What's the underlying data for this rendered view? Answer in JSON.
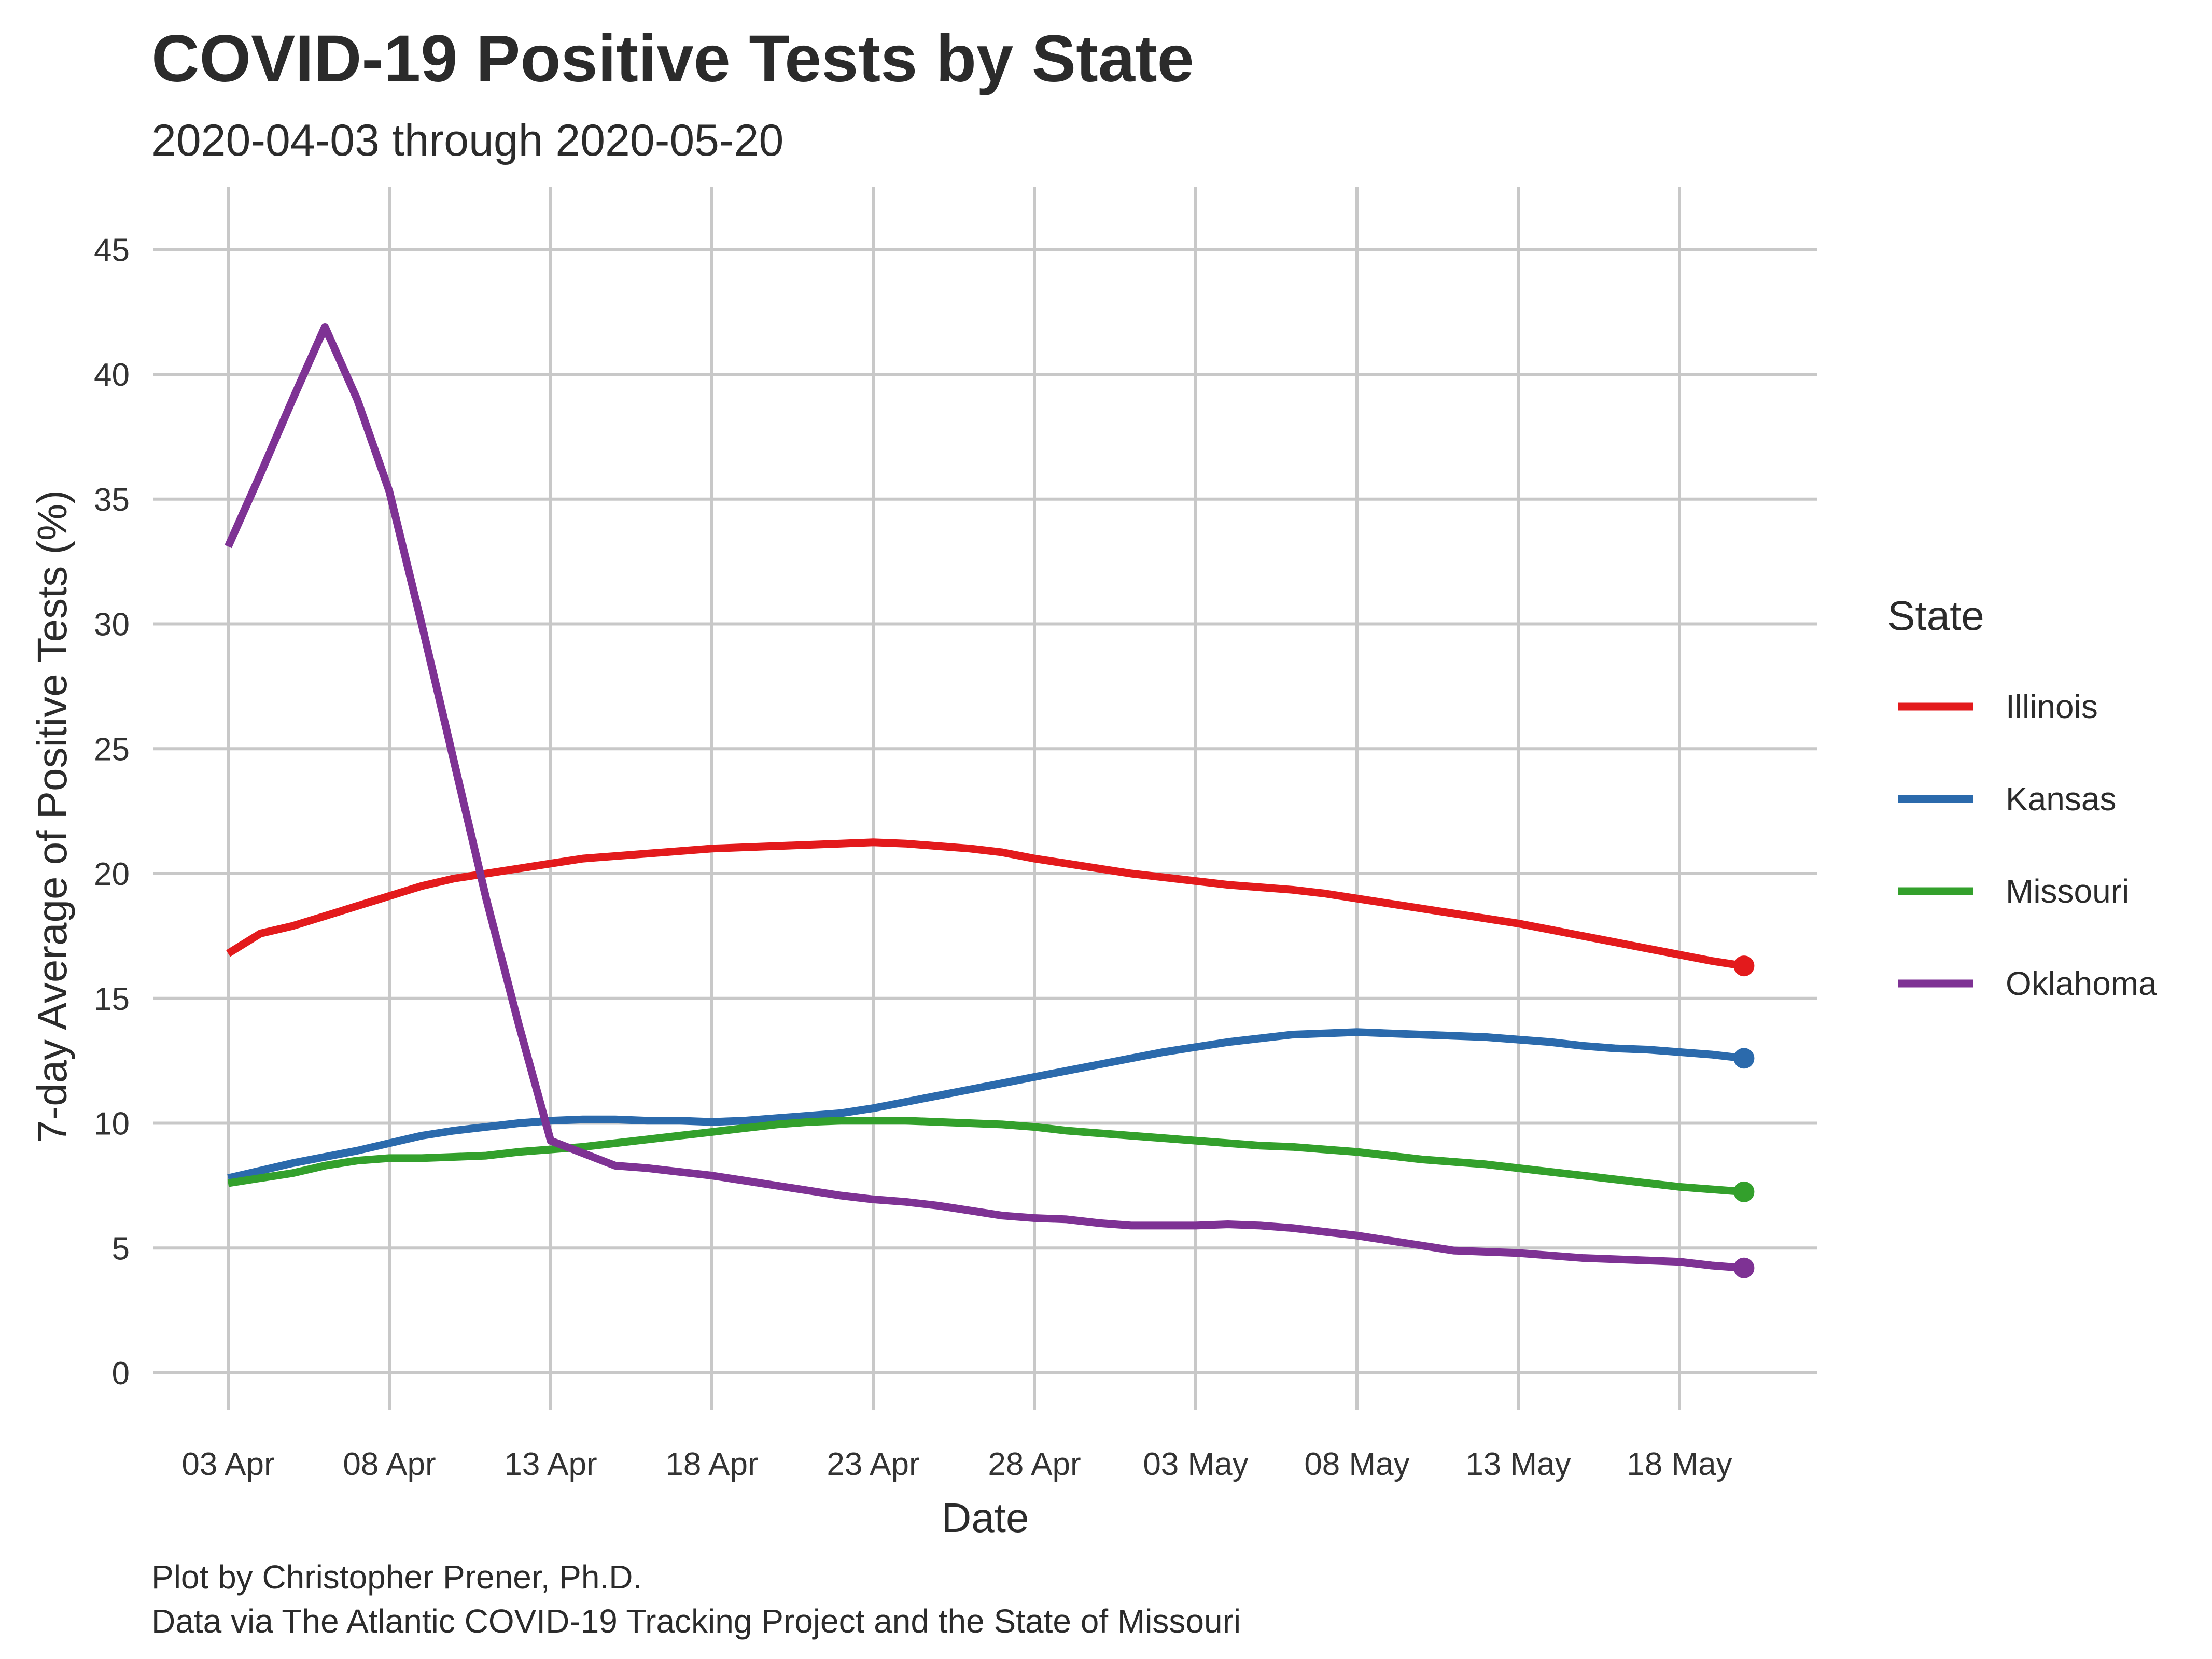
{
  "chart_data": {
    "type": "line",
    "title": "COVID-19 Positive Tests by State",
    "subtitle": "2020-04-03 through 2020-05-20",
    "xlabel": "Date",
    "ylabel": "7-day Average of Positive Tests (%)",
    "caption_lines": [
      "Plot by Christopher Prener, Ph.D.",
      "Data via The Atlantic COVID-19 Tracking Project and the State of Missouri"
    ],
    "xlim": [
      "2020-04-03",
      "2020-05-20"
    ],
    "ylim": [
      0,
      45
    ],
    "y_ticks": [
      0,
      5,
      10,
      15,
      20,
      25,
      30,
      35,
      40,
      45
    ],
    "x_ticks": [
      {
        "date": "2020-04-03",
        "label": "03 Apr"
      },
      {
        "date": "2020-04-08",
        "label": "08 Apr"
      },
      {
        "date": "2020-04-13",
        "label": "13 Apr"
      },
      {
        "date": "2020-04-18",
        "label": "18 Apr"
      },
      {
        "date": "2020-04-23",
        "label": "23 Apr"
      },
      {
        "date": "2020-04-28",
        "label": "28 Apr"
      },
      {
        "date": "2020-05-03",
        "label": "03 May"
      },
      {
        "date": "2020-05-08",
        "label": "08 May"
      },
      {
        "date": "2020-05-13",
        "label": "13 May"
      },
      {
        "date": "2020-05-18",
        "label": "18 May"
      }
    ],
    "grid": true,
    "legend": {
      "title": "State",
      "position": "right"
    },
    "series": [
      {
        "name": "Illinois",
        "color": "#e31a1c",
        "points": [
          [
            "2020-04-03",
            16.8
          ],
          [
            "2020-04-04",
            17.6
          ],
          [
            "2020-04-05",
            17.9
          ],
          [
            "2020-04-06",
            18.3
          ],
          [
            "2020-04-07",
            18.7
          ],
          [
            "2020-04-08",
            19.1
          ],
          [
            "2020-04-09",
            19.5
          ],
          [
            "2020-04-10",
            19.8
          ],
          [
            "2020-04-11",
            20.0
          ],
          [
            "2020-04-12",
            20.2
          ],
          [
            "2020-04-13",
            20.4
          ],
          [
            "2020-04-14",
            20.6
          ],
          [
            "2020-04-15",
            20.7
          ],
          [
            "2020-04-16",
            20.8
          ],
          [
            "2020-04-17",
            20.9
          ],
          [
            "2020-04-18",
            21.0
          ],
          [
            "2020-04-19",
            21.05
          ],
          [
            "2020-04-20",
            21.1
          ],
          [
            "2020-04-21",
            21.15
          ],
          [
            "2020-04-22",
            21.2
          ],
          [
            "2020-04-23",
            21.25
          ],
          [
            "2020-04-24",
            21.2
          ],
          [
            "2020-04-25",
            21.1
          ],
          [
            "2020-04-26",
            21.0
          ],
          [
            "2020-04-27",
            20.85
          ],
          [
            "2020-04-28",
            20.6
          ],
          [
            "2020-04-29",
            20.4
          ],
          [
            "2020-04-30",
            20.2
          ],
          [
            "2020-05-01",
            20.0
          ],
          [
            "2020-05-02",
            19.85
          ],
          [
            "2020-05-03",
            19.7
          ],
          [
            "2020-05-04",
            19.55
          ],
          [
            "2020-05-05",
            19.45
          ],
          [
            "2020-05-06",
            19.35
          ],
          [
            "2020-05-07",
            19.2
          ],
          [
            "2020-05-08",
            19.0
          ],
          [
            "2020-05-09",
            18.8
          ],
          [
            "2020-05-10",
            18.6
          ],
          [
            "2020-05-11",
            18.4
          ],
          [
            "2020-05-12",
            18.2
          ],
          [
            "2020-05-13",
            18.0
          ],
          [
            "2020-05-14",
            17.75
          ],
          [
            "2020-05-15",
            17.5
          ],
          [
            "2020-05-16",
            17.25
          ],
          [
            "2020-05-17",
            17.0
          ],
          [
            "2020-05-18",
            16.75
          ],
          [
            "2020-05-19",
            16.5
          ],
          [
            "2020-05-20",
            16.3
          ]
        ]
      },
      {
        "name": "Kansas",
        "color": "#2b6aac",
        "points": [
          [
            "2020-04-03",
            7.8
          ],
          [
            "2020-04-04",
            8.1
          ],
          [
            "2020-04-05",
            8.4
          ],
          [
            "2020-04-06",
            8.65
          ],
          [
            "2020-04-07",
            8.9
          ],
          [
            "2020-04-08",
            9.2
          ],
          [
            "2020-04-09",
            9.5
          ],
          [
            "2020-04-10",
            9.7
          ],
          [
            "2020-04-11",
            9.85
          ],
          [
            "2020-04-12",
            10.0
          ],
          [
            "2020-04-13",
            10.1
          ],
          [
            "2020-04-14",
            10.15
          ],
          [
            "2020-04-15",
            10.15
          ],
          [
            "2020-04-16",
            10.1
          ],
          [
            "2020-04-17",
            10.1
          ],
          [
            "2020-04-18",
            10.05
          ],
          [
            "2020-04-19",
            10.1
          ],
          [
            "2020-04-20",
            10.2
          ],
          [
            "2020-04-21",
            10.3
          ],
          [
            "2020-04-22",
            10.4
          ],
          [
            "2020-04-23",
            10.6
          ],
          [
            "2020-04-24",
            10.85
          ],
          [
            "2020-04-25",
            11.1
          ],
          [
            "2020-04-26",
            11.35
          ],
          [
            "2020-04-27",
            11.6
          ],
          [
            "2020-04-28",
            11.85
          ],
          [
            "2020-04-29",
            12.1
          ],
          [
            "2020-04-30",
            12.35
          ],
          [
            "2020-05-01",
            12.6
          ],
          [
            "2020-05-02",
            12.85
          ],
          [
            "2020-05-03",
            13.05
          ],
          [
            "2020-05-04",
            13.25
          ],
          [
            "2020-05-05",
            13.4
          ],
          [
            "2020-05-06",
            13.55
          ],
          [
            "2020-05-07",
            13.6
          ],
          [
            "2020-05-08",
            13.65
          ],
          [
            "2020-05-09",
            13.6
          ],
          [
            "2020-05-10",
            13.55
          ],
          [
            "2020-05-11",
            13.5
          ],
          [
            "2020-05-12",
            13.45
          ],
          [
            "2020-05-13",
            13.35
          ],
          [
            "2020-05-14",
            13.25
          ],
          [
            "2020-05-15",
            13.1
          ],
          [
            "2020-05-16",
            13.0
          ],
          [
            "2020-05-17",
            12.95
          ],
          [
            "2020-05-18",
            12.85
          ],
          [
            "2020-05-19",
            12.75
          ],
          [
            "2020-05-20",
            12.6
          ]
        ]
      },
      {
        "name": "Missouri",
        "color": "#33a02c",
        "points": [
          [
            "2020-04-03",
            7.6
          ],
          [
            "2020-04-04",
            7.8
          ],
          [
            "2020-04-05",
            8.0
          ],
          [
            "2020-04-06",
            8.3
          ],
          [
            "2020-04-07",
            8.5
          ],
          [
            "2020-04-08",
            8.6
          ],
          [
            "2020-04-09",
            8.6
          ],
          [
            "2020-04-10",
            8.65
          ],
          [
            "2020-04-11",
            8.7
          ],
          [
            "2020-04-12",
            8.85
          ],
          [
            "2020-04-13",
            8.95
          ],
          [
            "2020-04-14",
            9.05
          ],
          [
            "2020-04-15",
            9.2
          ],
          [
            "2020-04-16",
            9.35
          ],
          [
            "2020-04-17",
            9.5
          ],
          [
            "2020-04-18",
            9.65
          ],
          [
            "2020-04-19",
            9.8
          ],
          [
            "2020-04-20",
            9.95
          ],
          [
            "2020-04-21",
            10.05
          ],
          [
            "2020-04-22",
            10.1
          ],
          [
            "2020-04-23",
            10.1
          ],
          [
            "2020-04-24",
            10.1
          ],
          [
            "2020-04-25",
            10.05
          ],
          [
            "2020-04-26",
            10.0
          ],
          [
            "2020-04-27",
            9.95
          ],
          [
            "2020-04-28",
            9.85
          ],
          [
            "2020-04-29",
            9.7
          ],
          [
            "2020-04-30",
            9.6
          ],
          [
            "2020-05-01",
            9.5
          ],
          [
            "2020-05-02",
            9.4
          ],
          [
            "2020-05-03",
            9.3
          ],
          [
            "2020-05-04",
            9.2
          ],
          [
            "2020-05-05",
            9.1
          ],
          [
            "2020-05-06",
            9.05
          ],
          [
            "2020-05-07",
            8.95
          ],
          [
            "2020-05-08",
            8.85
          ],
          [
            "2020-05-09",
            8.7
          ],
          [
            "2020-05-10",
            8.55
          ],
          [
            "2020-05-11",
            8.45
          ],
          [
            "2020-05-12",
            8.35
          ],
          [
            "2020-05-13",
            8.2
          ],
          [
            "2020-05-14",
            8.05
          ],
          [
            "2020-05-15",
            7.9
          ],
          [
            "2020-05-16",
            7.75
          ],
          [
            "2020-05-17",
            7.6
          ],
          [
            "2020-05-18",
            7.45
          ],
          [
            "2020-05-19",
            7.35
          ],
          [
            "2020-05-20",
            7.25
          ]
        ]
      },
      {
        "name": "Oklahoma",
        "color": "#7e3294",
        "points": [
          [
            "2020-04-03",
            33.1
          ],
          [
            "2020-04-04",
            36.0
          ],
          [
            "2020-04-05",
            39.0
          ],
          [
            "2020-04-06",
            41.9
          ],
          [
            "2020-04-07",
            39.0
          ],
          [
            "2020-04-08",
            35.3
          ],
          [
            "2020-04-09",
            30.0
          ],
          [
            "2020-04-10",
            24.5
          ],
          [
            "2020-04-11",
            19.0
          ],
          [
            "2020-04-12",
            14.0
          ],
          [
            "2020-04-13",
            9.3
          ],
          [
            "2020-04-14",
            8.8
          ],
          [
            "2020-04-15",
            8.3
          ],
          [
            "2020-04-16",
            8.2
          ],
          [
            "2020-04-17",
            8.05
          ],
          [
            "2020-04-18",
            7.9
          ],
          [
            "2020-04-19",
            7.7
          ],
          [
            "2020-04-20",
            7.5
          ],
          [
            "2020-04-21",
            7.3
          ],
          [
            "2020-04-22",
            7.1
          ],
          [
            "2020-04-23",
            6.95
          ],
          [
            "2020-04-24",
            6.85
          ],
          [
            "2020-04-25",
            6.7
          ],
          [
            "2020-04-26",
            6.5
          ],
          [
            "2020-04-27",
            6.3
          ],
          [
            "2020-04-28",
            6.2
          ],
          [
            "2020-04-29",
            6.15
          ],
          [
            "2020-04-30",
            6.0
          ],
          [
            "2020-05-01",
            5.9
          ],
          [
            "2020-05-02",
            5.9
          ],
          [
            "2020-05-03",
            5.9
          ],
          [
            "2020-05-04",
            5.95
          ],
          [
            "2020-05-05",
            5.9
          ],
          [
            "2020-05-06",
            5.8
          ],
          [
            "2020-05-07",
            5.65
          ],
          [
            "2020-05-08",
            5.5
          ],
          [
            "2020-05-09",
            5.3
          ],
          [
            "2020-05-10",
            5.1
          ],
          [
            "2020-05-11",
            4.9
          ],
          [
            "2020-05-12",
            4.85
          ],
          [
            "2020-05-13",
            4.8
          ],
          [
            "2020-05-14",
            4.7
          ],
          [
            "2020-05-15",
            4.6
          ],
          [
            "2020-05-16",
            4.55
          ],
          [
            "2020-05-17",
            4.5
          ],
          [
            "2020-05-18",
            4.45
          ],
          [
            "2020-05-19",
            4.3
          ],
          [
            "2020-05-20",
            4.2
          ]
        ]
      }
    ]
  }
}
